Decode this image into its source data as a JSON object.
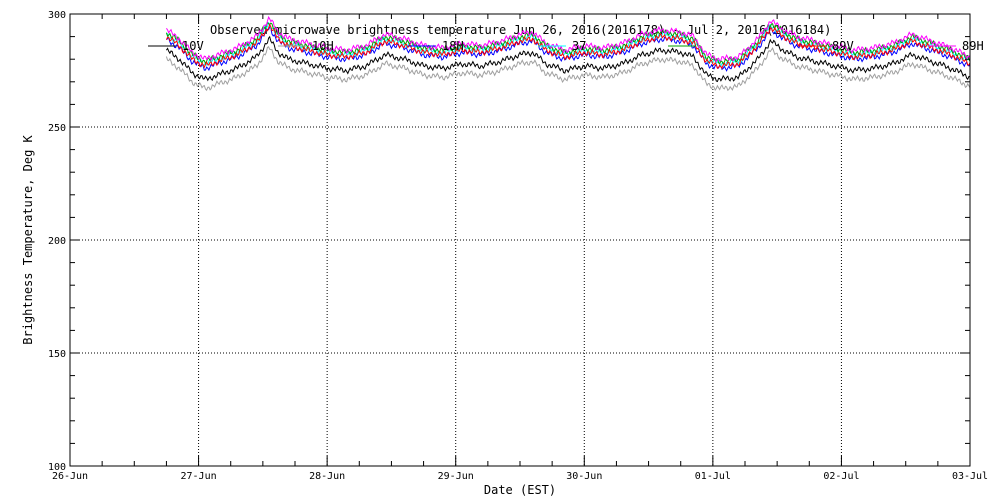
{
  "chart_data": {
    "type": "line",
    "title": "Observed microwave brightness temperature Jun 26, 2016(2016178) - Jul  2, 2016(2016184)",
    "xlabel": "Date (EST)",
    "ylabel": "Brightness Temperature, Deg K",
    "ylim": [
      100,
      300
    ],
    "yticks": [
      100,
      150,
      200,
      250,
      300
    ],
    "xlim": [
      "2016-06-26",
      "2016-07-03"
    ],
    "xticks": [
      "26-Jun",
      "27-Jun",
      "28-Jun",
      "29-Jun",
      "30-Jun",
      "01-Jul",
      "02-Jul",
      "03-Jul"
    ],
    "grid": true,
    "legend_position": "top",
    "series": [
      {
        "name": "10V",
        "color": "#000000",
        "offset": -7
      },
      {
        "name": "10H",
        "color": "#a0a0a0",
        "offset": -11
      },
      {
        "name": "18H",
        "color": "#0000ff",
        "offset": -2
      },
      {
        "name": "37",
        "color": "#00ffff",
        "offset": 0
      },
      {
        "name": "",
        "color": "#00a000",
        "offset": 1
      },
      {
        "name": "89V",
        "color": "#ff0000",
        "offset": -1
      },
      {
        "name": "89H",
        "color": "#ff00ff",
        "offset": 2
      }
    ],
    "base_curve": {
      "t_days": [
        0.75,
        0.85,
        0.95,
        1.05,
        1.15,
        1.3,
        1.45,
        1.55,
        1.62,
        1.7,
        1.85,
        2.0,
        2.15,
        2.3,
        2.45,
        2.6,
        2.75,
        2.9,
        3.05,
        3.2,
        3.35,
        3.5,
        3.6,
        3.7,
        3.85,
        4.0,
        4.15,
        4.3,
        4.45,
        4.6,
        4.75,
        4.85,
        4.95,
        5.05,
        5.2,
        5.35,
        5.45,
        5.55,
        5.65,
        5.8,
        5.95,
        6.1,
        6.25,
        6.4,
        6.55,
        6.7,
        6.85,
        7.0
      ],
      "values": [
        291,
        287,
        281,
        278,
        280,
        283,
        288,
        296,
        290,
        287,
        285,
        283,
        282,
        284,
        289,
        287,
        284,
        283,
        285,
        284,
        286,
        289,
        290,
        285,
        282,
        284,
        283,
        285,
        289,
        291,
        290,
        288,
        280,
        278,
        279,
        287,
        295,
        291,
        288,
        286,
        284,
        282,
        283,
        285,
        289,
        286,
        283,
        279
      ]
    }
  }
}
